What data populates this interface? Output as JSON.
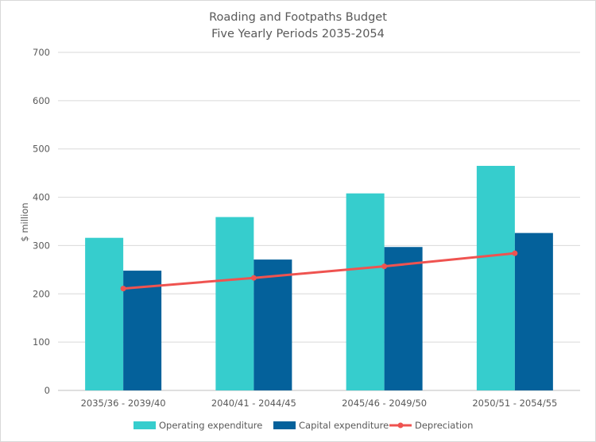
{
  "chart_data": {
    "type": "bar",
    "title": "Roading and Footpaths Budget",
    "subtitle": "Five Yearly Periods 2035-2054",
    "xlabel": "",
    "ylabel": "$ million",
    "ylim": [
      0,
      700
    ],
    "yticks": [
      "0",
      "100",
      "200",
      "300",
      "400",
      "500",
      "600",
      "700"
    ],
    "grid": true,
    "legend_position": "bottom",
    "categories": [
      "2035/36 - 2039/40",
      "2040/41 - 2044/45",
      "2045/46 - 2049/50",
      "2050/51 - 2054/55"
    ],
    "series": [
      {
        "name": "Operating expenditure",
        "kind": "bar",
        "color": "#36cdcd",
        "values": [
          316,
          359,
          408,
          465
        ]
      },
      {
        "name": "Capital expenditure",
        "kind": "bar",
        "color": "#04619b",
        "values": [
          248,
          271,
          297,
          326
        ]
      },
      {
        "name": "Depreciation",
        "kind": "line",
        "color": "#ef5350",
        "values": [
          211,
          233,
          257,
          284
        ]
      }
    ]
  }
}
